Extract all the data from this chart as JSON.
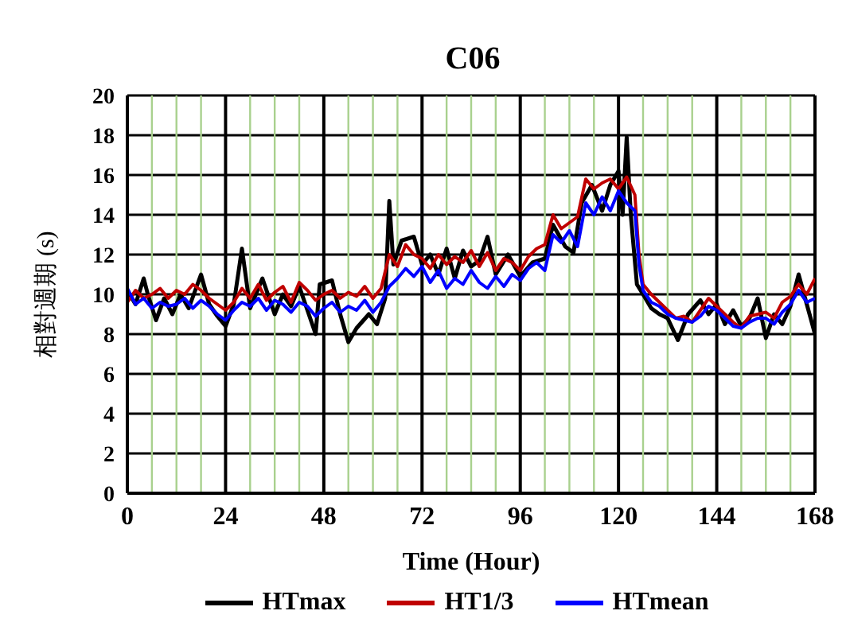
{
  "chart_data": {
    "type": "line",
    "title": "C06",
    "xlabel": "Time (Hour)",
    "ylabel": "相對週期 (s)",
    "x": [
      0,
      2,
      4,
      6,
      8,
      10,
      12,
      14,
      16,
      18,
      20,
      22,
      24,
      26,
      28,
      30,
      32,
      34,
      36,
      38,
      40,
      42,
      44,
      46,
      48,
      50,
      52,
      54,
      56,
      58,
      60,
      62,
      64,
      66,
      68,
      70,
      72,
      74,
      76,
      78,
      80,
      82,
      84,
      86,
      88,
      90,
      92,
      94,
      96,
      98,
      100,
      102,
      104,
      106,
      108,
      110,
      112,
      114,
      116,
      118,
      120,
      122,
      124,
      125,
      126,
      128,
      130,
      132,
      134,
      136,
      138,
      140,
      142,
      144,
      146,
      148,
      150,
      152,
      154,
      156,
      158,
      160,
      162,
      164,
      166,
      168
    ],
    "series": [
      {
        "name": "HTmax",
        "color": "#000000",
        "x": [
          0,
          2,
          4,
          5,
          7,
          9,
          11,
          13,
          15,
          18,
          20,
          22,
          24,
          26,
          28,
          30,
          33,
          36,
          38,
          40,
          42,
          44,
          46,
          47,
          50,
          52,
          54,
          56,
          59,
          61,
          63,
          64,
          65,
          67,
          70,
          72,
          74,
          76,
          78,
          80,
          82,
          84,
          86,
          88,
          90,
          93,
          96,
          99,
          102,
          104,
          107,
          109,
          111,
          113.5,
          116,
          118,
          120,
          121,
          122,
          123,
          124.5,
          126,
          128,
          130,
          132,
          134.5,
          137,
          140,
          142,
          144,
          146,
          148,
          150,
          152,
          154,
          156,
          158,
          160,
          162,
          164,
          166,
          168
        ],
        "values": [
          10.2,
          9.5,
          10.8,
          10,
          8.7,
          9.8,
          9,
          10,
          9.3,
          11,
          9.5,
          8.9,
          8.4,
          9.5,
          12.3,
          9.3,
          10.8,
          9,
          10,
          9.4,
          10.4,
          9.2,
          8,
          10.5,
          10.7,
          9,
          7.6,
          8.3,
          9,
          8.5,
          9.8,
          14.7,
          11.5,
          12.7,
          12.9,
          11.5,
          12,
          11,
          12.3,
          10.8,
          12.2,
          11.4,
          11.7,
          12.9,
          11,
          12,
          10.9,
          11.6,
          11.8,
          13.5,
          12.4,
          12.1,
          14.6,
          15.5,
          14.2,
          15.5,
          16.2,
          14,
          17.9,
          14,
          10.5,
          10,
          9.3,
          9,
          8.8,
          7.7,
          9,
          9.7,
          9,
          9.5,
          8.5,
          9.2,
          8.4,
          8.8,
          9.8,
          7.8,
          9,
          8.5,
          9.4,
          11,
          9.5,
          8
        ]
      },
      {
        "name": "HT1/3",
        "color": "#c00000",
        "values": [
          9.6,
          10.2,
          9.8,
          10,
          10.3,
          9.8,
          10.2,
          10,
          10.5,
          10.2,
          9.8,
          9.5,
          9.2,
          9.6,
          10.3,
          9.8,
          10.5,
          9.7,
          10.1,
          10.4,
          9.6,
          10.6,
          10.2,
          9.7,
          10,
          10.2,
          9.8,
          10.1,
          9.9,
          10.4,
          9.8,
          10.3,
          12,
          11.4,
          12.5,
          12,
          11.8,
          11.3,
          12,
          11.5,
          11.9,
          11.6,
          12.2,
          11.4,
          12.1,
          11.2,
          11.8,
          11.6,
          11.2,
          11.9,
          12.3,
          12.5,
          14,
          13.3,
          13.6,
          13.9,
          15.8,
          15.3,
          15.6,
          15.8,
          15.3,
          15.9,
          15,
          12,
          10.5,
          10,
          9.6,
          9.2,
          8.8,
          8.9,
          8.6,
          9.2,
          9.8,
          9.4,
          9,
          8.6,
          8.3,
          8.9,
          9,
          9.1,
          8.8,
          9.6,
          9.9,
          10.5,
          10,
          10.8
        ]
      },
      {
        "name": "HTmean",
        "color": "#0000ff",
        "values": [
          10.3,
          9.5,
          9.8,
          9.3,
          9.6,
          9.4,
          9.5,
          9.8,
          9.3,
          9.7,
          9.4,
          9,
          8.7,
          9.2,
          9.6,
          9.4,
          9.8,
          9.2,
          9.7,
          9.5,
          9.1,
          9.6,
          9.4,
          8.9,
          9.3,
          9.6,
          9.1,
          9.4,
          9.2,
          9.7,
          9.1,
          9.6,
          10.4,
          10.8,
          11.3,
          10.9,
          11.4,
          10.6,
          11.2,
          10.3,
          10.8,
          10.5,
          11.2,
          10.6,
          10.3,
          10.9,
          10.4,
          11,
          10.7,
          11.3,
          11.6,
          11.2,
          13,
          12.6,
          13.2,
          12.4,
          14.6,
          14,
          14.9,
          14.2,
          15.2,
          14.6,
          14.2,
          11.5,
          10.2,
          9.6,
          9.4,
          9,
          8.8,
          8.7,
          8.6,
          8.9,
          9.4,
          9.2,
          8.8,
          8.4,
          8.3,
          8.6,
          8.8,
          8.8,
          8.5,
          9.1,
          9.5,
          10.2,
          9.6,
          9.8
        ]
      }
    ],
    "xlim": [
      0,
      168
    ],
    "xticks": [
      0,
      {
        "value": 6,
        "label": null
      },
      {
        "value": 12,
        "label": null
      },
      {
        "value": 18,
        "label": null
      },
      24,
      {
        "value": 30,
        "label": null
      },
      {
        "value": 36,
        "label": null
      },
      {
        "value": 42,
        "label": null
      },
      48,
      {
        "value": 54,
        "label": null
      },
      {
        "value": 60,
        "label": null
      },
      {
        "value": 66,
        "label": null
      },
      72,
      {
        "value": 78,
        "label": null
      },
      {
        "value": 84,
        "label": null
      },
      {
        "value": 90,
        "label": null
      },
      96,
      {
        "value": 102,
        "label": null
      },
      {
        "value": 108,
        "label": null
      },
      {
        "value": 114,
        "label": null
      },
      120,
      {
        "value": 126,
        "label": null
      },
      {
        "value": 132,
        "label": null
      },
      {
        "value": 138,
        "label": null
      },
      144,
      {
        "value": 150,
        "label": null
      },
      {
        "value": 156,
        "label": null
      },
      {
        "value": 162,
        "label": null
      },
      168
    ],
    "ylim": [
      0,
      20
    ],
    "yticks": [
      0,
      2,
      4,
      6,
      8,
      10,
      12,
      14,
      16,
      18,
      20
    ],
    "grid": true,
    "legend": "bottom",
    "marker": "none",
    "line_style": "solid"
  }
}
